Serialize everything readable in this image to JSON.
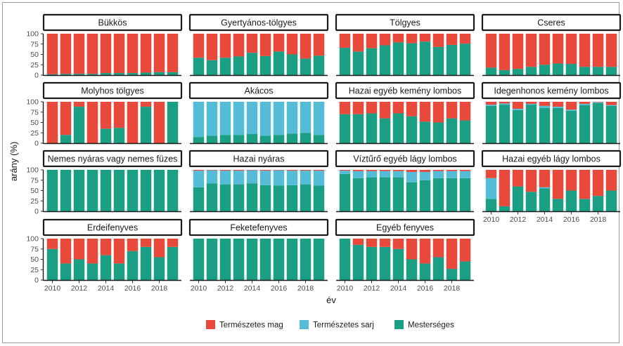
{
  "chart_data": {
    "type": "bar",
    "subtype": "stacked-100-facet",
    "xlabel": "év",
    "ylabel": "arány (%)",
    "ylim": [
      0,
      100
    ],
    "yticks": [
      0,
      25,
      50,
      75,
      100
    ],
    "x": [
      2010,
      2011,
      2012,
      2013,
      2014,
      2015,
      2016,
      2017,
      2018,
      2019
    ],
    "xticks": [
      2010,
      2012,
      2014,
      2016,
      2018
    ],
    "legend_position": "bottom",
    "categories_stack": [
      "Mesterséges",
      "Természetes sarj",
      "Természetes mag"
    ],
    "legend": [
      {
        "key": "mag",
        "label": "Természetes mag",
        "color": "#e8493a"
      },
      {
        "key": "sarj",
        "label": "Természetes sarj",
        "color": "#55bcd8"
      },
      {
        "key": "mest",
        "label": "Mesterséges",
        "color": "#1a9e84"
      }
    ],
    "panels": [
      {
        "title": "Bükkös",
        "mest": [
          2,
          3,
          3,
          3,
          5,
          5,
          5,
          6,
          7,
          7
        ],
        "sarj": [
          0,
          0,
          0,
          0,
          0,
          0,
          0,
          0,
          0,
          0
        ]
      },
      {
        "title": "Gyertyános-tölgyes",
        "mest": [
          42,
          36,
          42,
          45,
          54,
          46,
          57,
          50,
          40,
          47
        ],
        "sarj": [
          0,
          0,
          0,
          0,
          0,
          0,
          0,
          0,
          0,
          0
        ]
      },
      {
        "title": "Tölgyes",
        "mest": [
          66,
          57,
          65,
          72,
          79,
          77,
          81,
          68,
          73,
          76
        ],
        "sarj": [
          0,
          0,
          0,
          0,
          0,
          0,
          0,
          0,
          0,
          0
        ]
      },
      {
        "title": "Cseres",
        "mest": [
          18,
          12,
          15,
          20,
          25,
          28,
          27,
          20,
          20,
          20
        ],
        "sarj": [
          0,
          0,
          0,
          0,
          0,
          0,
          0,
          0,
          0,
          0
        ]
      },
      {
        "title": "Molyhos tölgyes",
        "mest": [
          0,
          20,
          88,
          0,
          35,
          37,
          0,
          88,
          0,
          100
        ],
        "sarj": [
          0,
          0,
          0,
          0,
          0,
          0,
          0,
          0,
          0,
          0
        ]
      },
      {
        "title": "Akácos",
        "mest": [
          15,
          18,
          20,
          20,
          22,
          18,
          20,
          23,
          25,
          20
        ],
        "sarj": [
          85,
          82,
          80,
          80,
          78,
          82,
          80,
          77,
          75,
          80
        ]
      },
      {
        "title": "Hazai egyéb kemény lombos",
        "mest": [
          70,
          70,
          72,
          60,
          72,
          65,
          52,
          50,
          60,
          55
        ],
        "sarj": [
          0,
          0,
          0,
          0,
          0,
          0,
          0,
          0,
          0,
          0
        ]
      },
      {
        "title": "Idegenhonos kemény lombos",
        "mest": [
          90,
          93,
          80,
          93,
          85,
          85,
          78,
          92,
          97,
          90
        ],
        "sarj": [
          3,
          3,
          3,
          2,
          5,
          3,
          3,
          3,
          2,
          2
        ]
      },
      {
        "title": "Nemes nyáras vagy nemes füzes",
        "mest": [
          100,
          100,
          100,
          100,
          100,
          100,
          100,
          100,
          100,
          100
        ],
        "sarj": [
          0,
          0,
          0,
          0,
          0,
          0,
          0,
          0,
          0,
          0
        ]
      },
      {
        "title": "Hazai nyáras",
        "mest": [
          58,
          67,
          65,
          65,
          67,
          63,
          62,
          63,
          65,
          62
        ],
        "sarj": [
          40,
          32,
          33,
          33,
          32,
          35,
          37,
          35,
          33,
          36
        ]
      },
      {
        "title": "Víztűrő egyéb lágy lombos",
        "mest": [
          90,
          80,
          82,
          82,
          82,
          70,
          75,
          80,
          80,
          80
        ],
        "sarj": [
          8,
          17,
          15,
          15,
          15,
          25,
          20,
          17,
          17,
          17
        ]
      },
      {
        "title": "Hazai egyéb lágy lombos",
        "mest": [
          30,
          12,
          60,
          47,
          55,
          30,
          50,
          30,
          37,
          50
        ],
        "sarj": [
          50,
          0,
          0,
          0,
          3,
          0,
          0,
          0,
          0,
          0
        ]
      },
      {
        "title": "Erdeifenyves",
        "mest": [
          75,
          40,
          50,
          40,
          60,
          40,
          70,
          80,
          55,
          80
        ],
        "sarj": [
          0,
          0,
          0,
          0,
          0,
          0,
          0,
          0,
          0,
          0
        ]
      },
      {
        "title": "Feketefenyves",
        "mest": [
          100,
          100,
          100,
          100,
          100,
          100,
          100,
          100,
          100,
          100
        ],
        "sarj": [
          0,
          0,
          0,
          0,
          0,
          0,
          0,
          0,
          0,
          0
        ]
      },
      {
        "title": "Egyéb fenyves",
        "mest": [
          100,
          85,
          80,
          80,
          75,
          50,
          40,
          55,
          27,
          45
        ],
        "sarj": [
          0,
          0,
          0,
          0,
          0,
          0,
          0,
          0,
          0,
          0
        ]
      }
    ]
  }
}
